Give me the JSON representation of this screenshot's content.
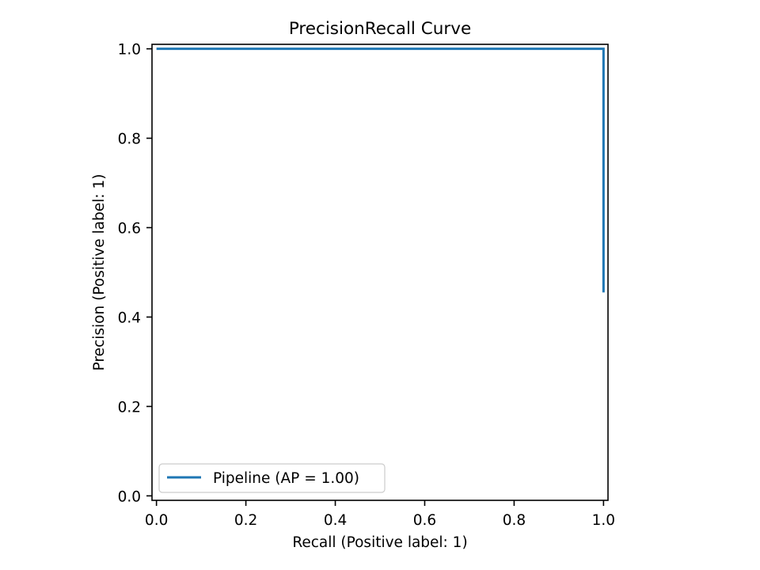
{
  "chart_data": {
    "type": "line",
    "title": "PrecisionRecall Curve",
    "xlabel": "Recall (Positive label: 1)",
    "ylabel": "Precision (Positive label: 1)",
    "xlim": [
      -0.01,
      1.01
    ],
    "ylim": [
      -0.01,
      1.01
    ],
    "xticks": [
      0.0,
      0.2,
      0.4,
      0.6,
      0.8,
      1.0
    ],
    "yticks": [
      0.0,
      0.2,
      0.4,
      0.6,
      0.8,
      1.0
    ],
    "xtick_labels": [
      "0.0",
      "0.2",
      "0.4",
      "0.6",
      "0.8",
      "1.0"
    ],
    "ytick_labels": [
      "0.0",
      "0.2",
      "0.4",
      "0.6",
      "0.8",
      "1.0"
    ],
    "grid": false,
    "legend_placement": "lower-left",
    "series": [
      {
        "name": "Pipeline (AP = 1.00)",
        "color": "#1f77b4",
        "step": "post",
        "x": [
          0.0,
          1.0,
          1.0
        ],
        "y": [
          1.0,
          1.0,
          0.455
        ]
      }
    ]
  }
}
